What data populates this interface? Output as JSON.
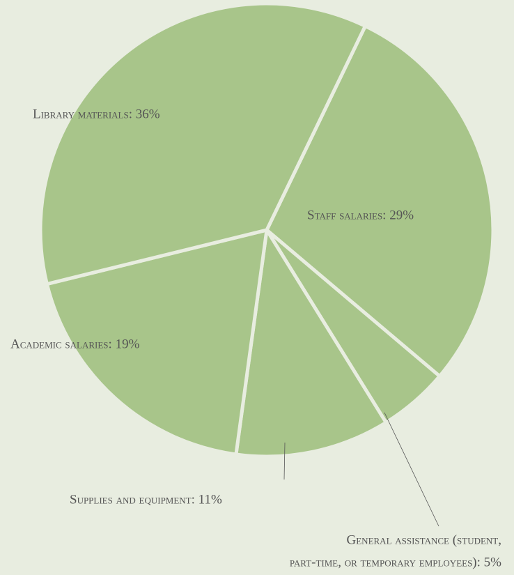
{
  "chart_data": {
    "type": "pie",
    "labels": [
      [
        "Staff salaries: 29%"
      ],
      [
        "General assistance (student,",
        "part-time, or temporary employees): 5%"
      ],
      [
        "Supplies and equipment: 11%"
      ],
      [
        "Academic salaries: 19%"
      ],
      [
        "Library materials: 36%"
      ]
    ],
    "values": [
      29,
      5,
      11,
      19,
      36
    ],
    "color": "#a8c58a"
  }
}
